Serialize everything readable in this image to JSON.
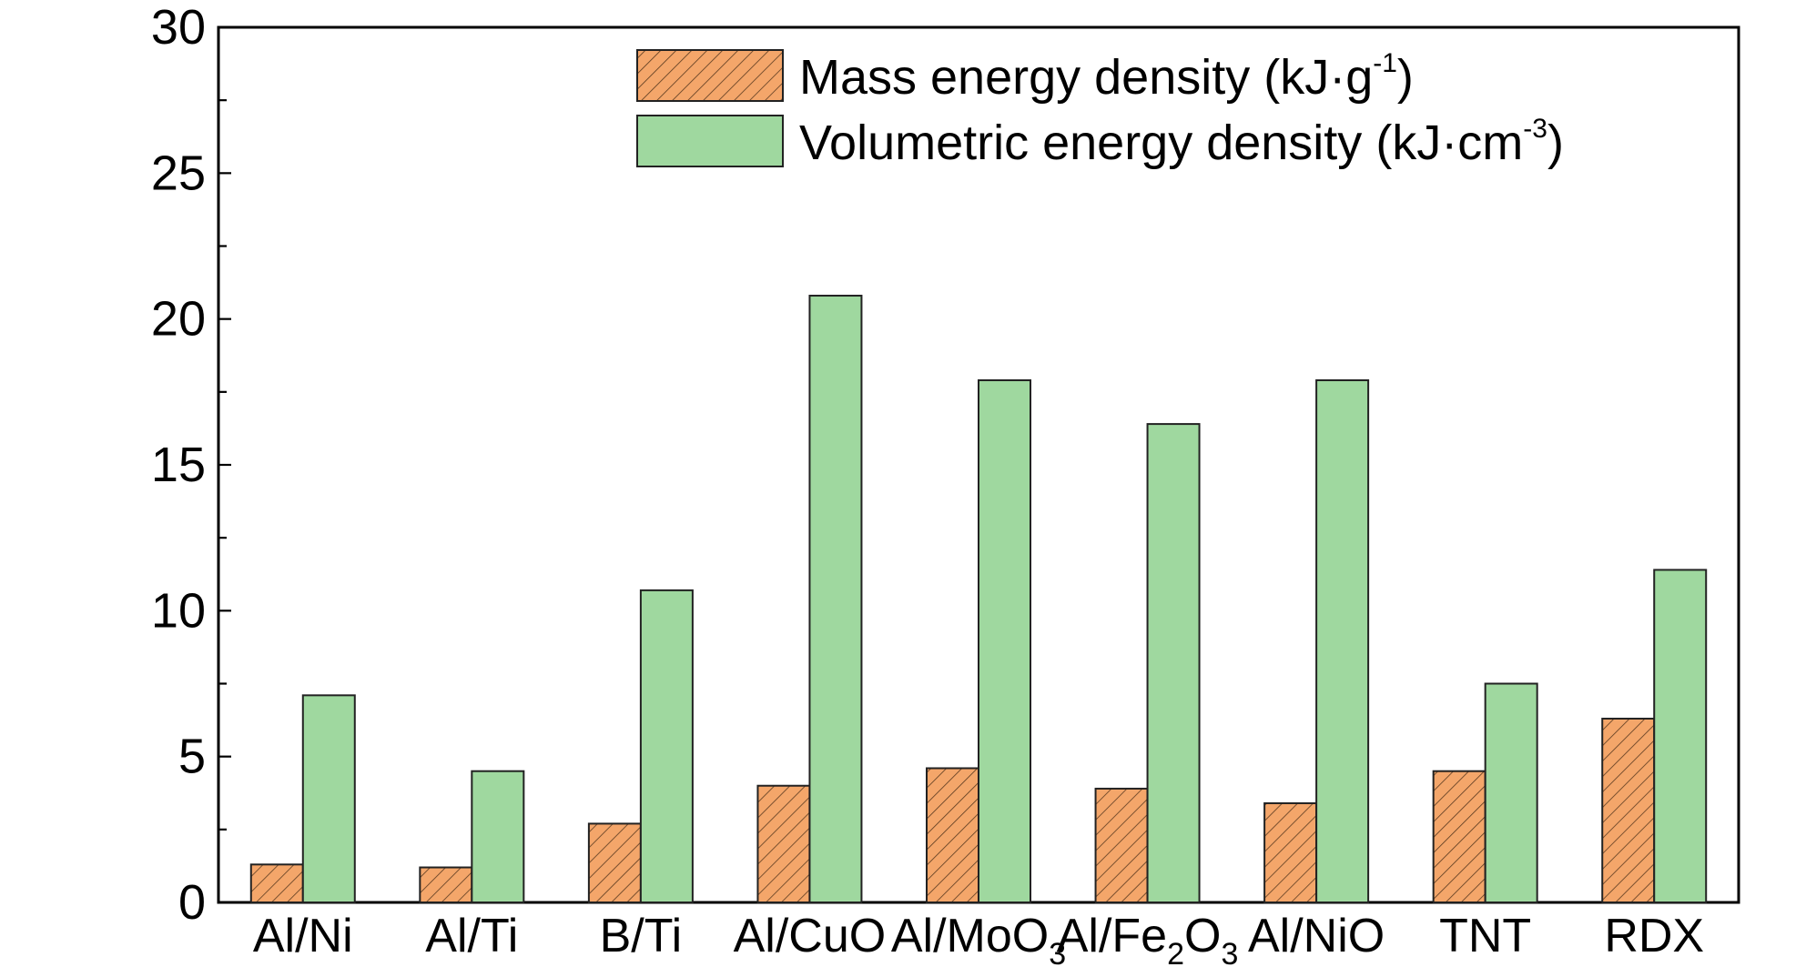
{
  "chart_data": {
    "type": "bar",
    "title": "",
    "xlabel": "",
    "ylabel": "",
    "ylim": [
      0,
      30
    ],
    "yticks": [
      0,
      5,
      10,
      15,
      20,
      25,
      30
    ],
    "y_minor_step": 2.5,
    "grid": false,
    "legend_position": "top-right",
    "categories": [
      {
        "base": "Al/Ni",
        "sub": "",
        "mid": "",
        "sub2": ""
      },
      {
        "base": "Al/Ti",
        "sub": "",
        "mid": "",
        "sub2": ""
      },
      {
        "base": "B/Ti",
        "sub": "",
        "mid": "",
        "sub2": ""
      },
      {
        "base": "Al/CuO",
        "sub": "",
        "mid": "",
        "sub2": ""
      },
      {
        "base": "Al/MoO",
        "sub": "3",
        "mid": "",
        "sub2": ""
      },
      {
        "base": "Al/Fe",
        "sub": "2",
        "mid": "O",
        "sub2": "3"
      },
      {
        "base": "Al/NiO",
        "sub": "",
        "mid": "",
        "sub2": ""
      },
      {
        "base": "TNT",
        "sub": "",
        "mid": "",
        "sub2": ""
      },
      {
        "base": "RDX",
        "sub": "",
        "mid": "",
        "sub2": ""
      }
    ],
    "series": [
      {
        "name_base": "Mass energy density (kJ·g",
        "name_sup": "-1",
        "name_tail": ")",
        "color": "#f4a66a",
        "pattern": "hatch",
        "values": [
          1.3,
          1.2,
          2.7,
          4.0,
          4.6,
          3.9,
          3.4,
          4.5,
          6.3
        ]
      },
      {
        "name_base": "Volumetric energy density (kJ·cm",
        "name_sup": "-3",
        "name_tail": ")",
        "color": "#9fd89f",
        "pattern": "solid",
        "values": [
          7.1,
          4.5,
          10.7,
          20.8,
          17.9,
          16.4,
          17.9,
          7.5,
          11.4
        ]
      }
    ]
  }
}
